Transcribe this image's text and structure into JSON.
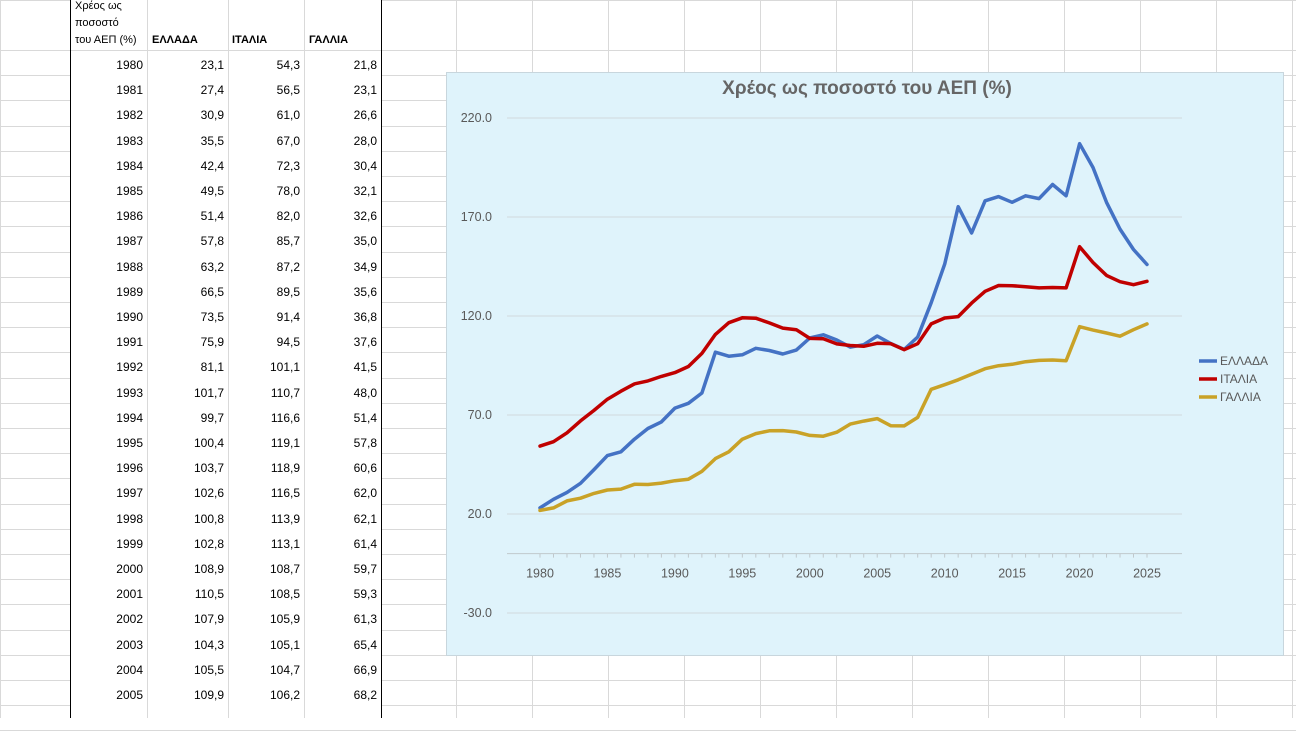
{
  "table": {
    "header": {
      "year_col": "Χρέος ως ποσοστό του ΑΕΠ (%)",
      "year_col_lines": [
        "Χρέος ως",
        "ποσοστό",
        "του ΑΕΠ (%)"
      ],
      "col_greece": "ΕΛΛΑΔΑ",
      "col_italy": "ΙΤΑΛΙΑ",
      "col_france": "ΓΑΛΛΙΑ"
    },
    "rows": [
      [
        "1980",
        "23,1",
        "54,3",
        "21,8"
      ],
      [
        "1981",
        "27,4",
        "56,5",
        "23,1"
      ],
      [
        "1982",
        "30,9",
        "61,0",
        "26,6"
      ],
      [
        "1983",
        "35,5",
        "67,0",
        "28,0"
      ],
      [
        "1984",
        "42,4",
        "72,3",
        "30,4"
      ],
      [
        "1985",
        "49,5",
        "78,0",
        "32,1"
      ],
      [
        "1986",
        "51,4",
        "82,0",
        "32,6"
      ],
      [
        "1987",
        "57,8",
        "85,7",
        "35,0"
      ],
      [
        "1988",
        "63,2",
        "87,2",
        "34,9"
      ],
      [
        "1989",
        "66,5",
        "89,5",
        "35,6"
      ],
      [
        "1990",
        "73,5",
        "91,4",
        "36,8"
      ],
      [
        "1991",
        "75,9",
        "94,5",
        "37,6"
      ],
      [
        "1992",
        "81,1",
        "101,1",
        "41,5"
      ],
      [
        "1993",
        "101,7",
        "110,7",
        "48,0"
      ],
      [
        "1994",
        "99,7",
        "116,6",
        "51,4"
      ],
      [
        "1995",
        "100,4",
        "119,1",
        "57,8"
      ],
      [
        "1996",
        "103,7",
        "118,9",
        "60,6"
      ],
      [
        "1997",
        "102,6",
        "116,5",
        "62,0"
      ],
      [
        "1998",
        "100,8",
        "113,9",
        "62,1"
      ],
      [
        "1999",
        "102,8",
        "113,1",
        "61,4"
      ],
      [
        "2000",
        "108,9",
        "108,7",
        "59,7"
      ],
      [
        "2001",
        "110,5",
        "108,5",
        "59,3"
      ],
      [
        "2002",
        "107,9",
        "105,9",
        "61,3"
      ],
      [
        "2003",
        "104,3",
        "105,1",
        "65,4"
      ],
      [
        "2004",
        "105,5",
        "104,7",
        "66,9"
      ],
      [
        "2005",
        "109,9",
        "106,2",
        "68,2"
      ]
    ]
  },
  "chart_data": {
    "type": "line",
    "title": "Χρέος ως ποσοστό του ΑΕΠ (%)",
    "xlabel": "",
    "ylabel": "",
    "ylim": [
      -30,
      220
    ],
    "xlim": [
      1980,
      2025
    ],
    "y_ticks": [
      "220.0",
      "170.0",
      "120.0",
      "70.0",
      "20.0",
      "-30.0"
    ],
    "x_ticks": [
      "1980",
      "1985",
      "1990",
      "1995",
      "2000",
      "2005",
      "2010",
      "2015",
      "2020",
      "2025"
    ],
    "grid": true,
    "legend_position": "right",
    "x": [
      1980,
      1981,
      1982,
      1983,
      1984,
      1985,
      1986,
      1987,
      1988,
      1989,
      1990,
      1991,
      1992,
      1993,
      1994,
      1995,
      1996,
      1997,
      1998,
      1999,
      2000,
      2001,
      2002,
      2003,
      2004,
      2005,
      2006,
      2007,
      2008,
      2009,
      2010,
      2011,
      2012,
      2013,
      2014,
      2015,
      2016,
      2017,
      2018,
      2019,
      2020,
      2021,
      2022,
      2023,
      2024,
      2025
    ],
    "series": [
      {
        "name": "ΕΛΛΑΔΑ",
        "color": "#4472c4",
        "values": [
          23.1,
          27.4,
          30.9,
          35.5,
          42.4,
          49.5,
          51.4,
          57.8,
          63.2,
          66.5,
          73.5,
          75.9,
          81.1,
          101.7,
          99.7,
          100.4,
          103.7,
          102.6,
          100.8,
          102.8,
          108.9,
          110.5,
          107.9,
          104.3,
          105.5,
          109.9,
          106.1,
          103.1,
          109.4,
          126.7,
          146.2,
          175.2,
          161.9,
          178.2,
          180.3,
          177.4,
          180.7,
          179.3,
          186.4,
          180.7,
          207.0,
          195.0,
          177.4,
          163.9,
          153.6,
          146.0
        ]
      },
      {
        "name": "ΙΤΑΛΙΑ",
        "color": "#c00000",
        "values": [
          54.3,
          56.5,
          61.0,
          67.0,
          72.3,
          78.0,
          82.0,
          85.7,
          87.2,
          89.5,
          91.4,
          94.5,
          101.1,
          110.7,
          116.6,
          119.1,
          118.9,
          116.5,
          113.9,
          113.1,
          108.7,
          108.5,
          105.9,
          105.1,
          104.7,
          106.2,
          106.0,
          103.0,
          106.0,
          116.0,
          119.0,
          119.7,
          126.5,
          132.5,
          135.4,
          135.3,
          134.8,
          134.2,
          134.4,
          134.2,
          155.0,
          147.0,
          140.5,
          137.3,
          135.8,
          137.5
        ]
      },
      {
        "name": "ΓΑΛΛΙΑ",
        "color": "#c9a227",
        "values": [
          21.8,
          23.1,
          26.6,
          28.0,
          30.4,
          32.1,
          32.6,
          35.0,
          34.9,
          35.6,
          36.8,
          37.6,
          41.5,
          48.0,
          51.4,
          57.8,
          60.6,
          62.0,
          62.1,
          61.4,
          59.7,
          59.3,
          61.3,
          65.4,
          66.9,
          68.2,
          64.6,
          64.5,
          68.8,
          83.0,
          85.3,
          87.8,
          90.6,
          93.4,
          94.9,
          95.6,
          96.9,
          97.6,
          97.8,
          97.4,
          114.6,
          112.9,
          111.4,
          109.8,
          113.1,
          116.0
        ]
      }
    ]
  }
}
